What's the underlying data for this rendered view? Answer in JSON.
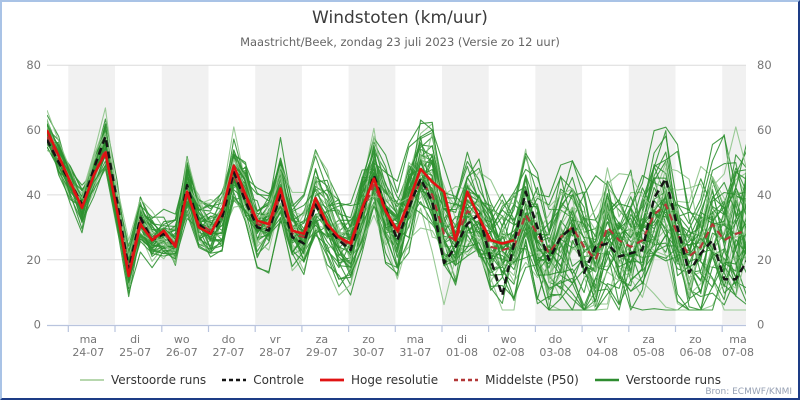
{
  "header": {
    "title": "Windstoten (km/uur)",
    "subtitle": "Maastricht/Beek, zondag 23 juli 2023 (Versie zo 12 uur)"
  },
  "attribution": "Bron: ECMWF/KNMI",
  "legend": [
    {
      "label": "Verstoorde runs",
      "color": "#b7d7ae",
      "dash": "",
      "width": 2.0
    },
    {
      "label": "Controle",
      "color": "#151515",
      "dash": "4 3",
      "width": 2.6
    },
    {
      "label": "Hoge resolutie",
      "color": "#e01313",
      "dash": "",
      "width": 2.8
    },
    {
      "label": "Middelste (P50)",
      "color": "#b23737",
      "dash": "4 3",
      "width": 2.4
    },
    {
      "label": "Verstoorde runs",
      "color": "#2e8c30",
      "dash": "",
      "width": 2.4
    }
  ],
  "chart_data": {
    "type": "line",
    "title": "Windstoten (km/uur)",
    "subtitle": "Maastricht/Beek, zondag 23 juli 2023 (Versie zo 12 uur)",
    "ylabel": "km/uur",
    "ylim": [
      0,
      80
    ],
    "yticks": [
      0,
      20,
      40,
      60,
      80
    ],
    "x_start": "zo 23-07-2023 12:00",
    "x_end": "ma 07-08-2023 12:00",
    "step_hours": 6,
    "grid": true,
    "legend_position": "bottom",
    "days": [
      [
        "ma",
        "24-07"
      ],
      [
        "di",
        "25-07"
      ],
      [
        "wo",
        "26-07"
      ],
      [
        "do",
        "27-07"
      ],
      [
        "vr",
        "28-07"
      ],
      [
        "za",
        "29-07"
      ],
      [
        "zo",
        "30-07"
      ],
      [
        "ma",
        "31-07"
      ],
      [
        "di",
        "01-08"
      ],
      [
        "wo",
        "02-08"
      ],
      [
        "do",
        "03-08"
      ],
      [
        "vr",
        "04-08"
      ],
      [
        "za",
        "05-08"
      ],
      [
        "zo",
        "06-08"
      ],
      [
        "ma",
        "07-08"
      ]
    ],
    "series": [
      {
        "name": "Verstoorde runs",
        "kind": "ensemble",
        "n_members": 50,
        "seed": 11,
        "color_light": "#8cc487",
        "color_dark": "#2e9130",
        "width": 1.1
      },
      {
        "name": "Middelste (P50)",
        "kind": "p50",
        "color": "#b23737",
        "dash": "7 5",
        "width": 2.2,
        "values": [
          58,
          51,
          43,
          36,
          46,
          54,
          36,
          17,
          32,
          27,
          28,
          25,
          41,
          31,
          29,
          33,
          46,
          39,
          31,
          30,
          40,
          28,
          27,
          37,
          31,
          27,
          24,
          35,
          43,
          35,
          28,
          37,
          44,
          40,
          28,
          26,
          35,
          33,
          24,
          23,
          24,
          34,
          28,
          22,
          27,
          30,
          24,
          20,
          30,
          26,
          24,
          26,
          34,
          37,
          28,
          21,
          24,
          31,
          26,
          28,
          29
        ]
      },
      {
        "name": "Controle",
        "kind": "control",
        "color": "#151515",
        "dash": "7 4.5",
        "width": 2.5,
        "values": [
          57,
          50,
          44,
          37,
          48,
          58,
          38,
          17,
          33,
          26,
          28,
          24,
          43,
          31,
          28,
          33,
          47,
          38,
          30,
          29,
          40,
          27,
          25,
          37,
          30,
          26,
          23,
          35,
          46,
          36,
          26,
          36,
          45,
          38,
          19,
          24,
          31,
          34,
          20,
          9,
          25,
          41,
          30,
          20,
          27,
          30,
          16,
          24,
          25,
          21,
          22,
          23,
          39,
          45,
          30,
          16,
          22,
          26,
          14,
          14,
          20
        ]
      },
      {
        "name": "Hoge resolutie",
        "kind": "hres",
        "color": "#e01313",
        "dash": "",
        "width": 2.6,
        "values": [
          60,
          52,
          44,
          36,
          46,
          53,
          35,
          15,
          31,
          26,
          29,
          24,
          41,
          30,
          28,
          35,
          49,
          40,
          32,
          31,
          42,
          29,
          28,
          39,
          31,
          27,
          25,
          36,
          45,
          35,
          29,
          38,
          48,
          44,
          41,
          26,
          41,
          33,
          26,
          25,
          26
        ]
      }
    ],
    "day_band_color": "#f1f1f1",
    "axis_color": "#b9c4de",
    "grid_color": "#dcdcdc",
    "tick_label_color": "#767676"
  }
}
